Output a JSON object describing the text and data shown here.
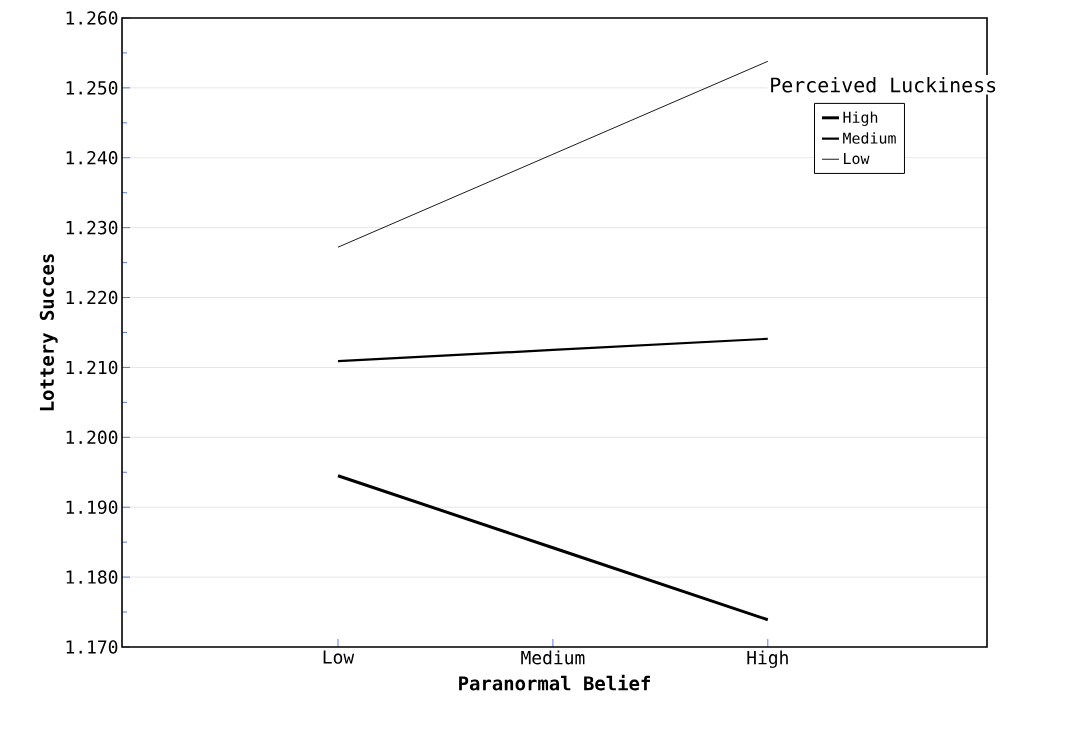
{
  "chart_data": {
    "type": "line",
    "xlabel": "Paranormal Belief",
    "ylabel": "Lottery Succes",
    "legend_title": "Perceived Luckiness",
    "categories": [
      "Low",
      "Medium",
      "High"
    ],
    "series": [
      {
        "name": "High",
        "color": "#000000",
        "values": [
          1.1945,
          1.1842,
          1.1739
        ]
      },
      {
        "name": "Medium",
        "color": "#000000",
        "values": [
          1.2109,
          1.2125,
          1.2141
        ]
      },
      {
        "name": "Low",
        "color": "#000000",
        "values": [
          1.2272,
          1.2405,
          1.2538
        ]
      }
    ],
    "ylim": [
      1.17,
      1.26
    ],
    "yticks": [
      {
        "value": 1.17,
        "label": "1.170"
      },
      {
        "value": 1.18,
        "label": "1.180"
      },
      {
        "value": 1.19,
        "label": "1.190"
      },
      {
        "value": 1.2,
        "label": "1.200"
      },
      {
        "value": 1.21,
        "label": "1.210"
      },
      {
        "value": 1.22,
        "label": "1.220"
      },
      {
        "value": 1.23,
        "label": "1.230"
      },
      {
        "value": 1.24,
        "label": "1.240"
      },
      {
        "value": 1.25,
        "label": "1.250"
      },
      {
        "value": 1.26,
        "label": "1.260"
      }
    ],
    "grid": "y",
    "legend": "top right",
    "marker": "none",
    "line_style": "solid"
  }
}
